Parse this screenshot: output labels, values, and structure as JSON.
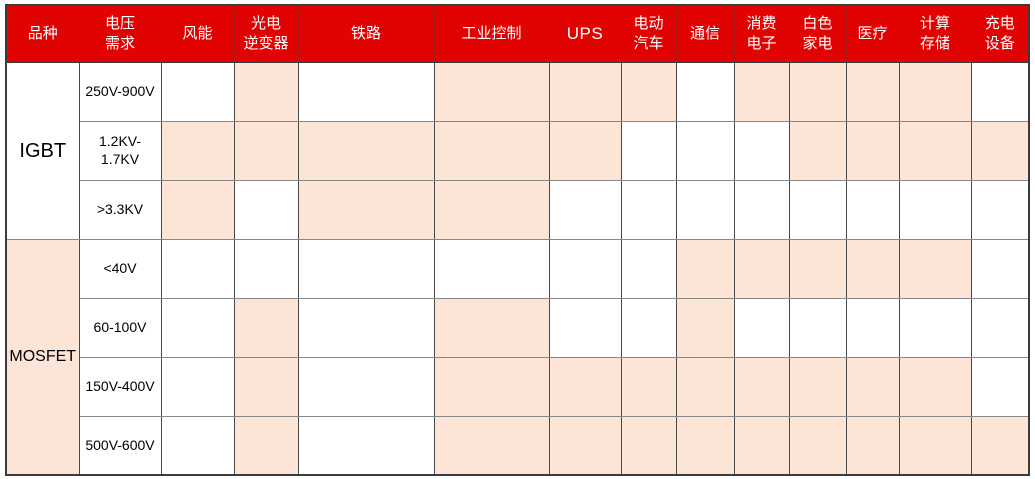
{
  "chart_data": {
    "type": "table",
    "columns": [
      "品种",
      "电压\n需求",
      "风能",
      "光电\n逆变器",
      "铁路",
      "工业控制",
      "UPS",
      "电动\n汽车",
      "通信",
      "消费\n电子",
      "白色\n家电",
      "医疗",
      "计算\n存储",
      "充电\n设备"
    ],
    "column_keys": [
      "variety",
      "voltage-demand",
      "wind-energy",
      "pv-inverter",
      "railway",
      "industrial-control",
      "ups",
      "electric-vehicle",
      "telecom",
      "consumer-electronics",
      "white-goods",
      "medical",
      "computing-storage",
      "charging-equipment"
    ],
    "application_keys": [
      "wind-energy",
      "pv-inverter",
      "railway",
      "industrial-control",
      "ups",
      "electric-vehicle",
      "telecom",
      "consumer-electronics",
      "white-goods",
      "medical",
      "computing-storage",
      "charging-equipment"
    ],
    "row_groups": [
      {
        "label": "IGBT",
        "label_filled": false,
        "rows": [
          {
            "voltage": "250V-900V",
            "cells": [
              0,
              1,
              0,
              1,
              1,
              1,
              0,
              1,
              1,
              1,
              1,
              0
            ]
          },
          {
            "voltage": "1.2KV-\n1.7KV",
            "cells": [
              1,
              1,
              1,
              1,
              1,
              0,
              0,
              0,
              1,
              1,
              1,
              1
            ]
          },
          {
            "voltage": ">3.3KV",
            "cells": [
              1,
              0,
              1,
              1,
              0,
              0,
              0,
              0,
              0,
              0,
              0,
              0
            ]
          }
        ]
      },
      {
        "label": "MOSFET",
        "label_filled": true,
        "rows": [
          {
            "voltage": "<40V",
            "cells": [
              0,
              0,
              0,
              0,
              0,
              0,
              1,
              1,
              1,
              1,
              1,
              0
            ]
          },
          {
            "voltage": "60-100V",
            "cells": [
              0,
              1,
              0,
              1,
              0,
              0,
              1,
              0,
              0,
              0,
              0,
              0
            ]
          },
          {
            "voltage": "150V-400V",
            "cells": [
              0,
              1,
              0,
              1,
              1,
              1,
              1,
              1,
              1,
              1,
              1,
              0
            ]
          },
          {
            "voltage": "500V-600V",
            "cells": [
              0,
              1,
              0,
              1,
              1,
              1,
              1,
              1,
              1,
              1,
              1,
              1
            ]
          }
        ]
      }
    ],
    "colors": {
      "header_bg": "#e10202",
      "header_text": "#ffffff",
      "filled_cell": "#fce4d6",
      "body_text": "#000000"
    }
  }
}
